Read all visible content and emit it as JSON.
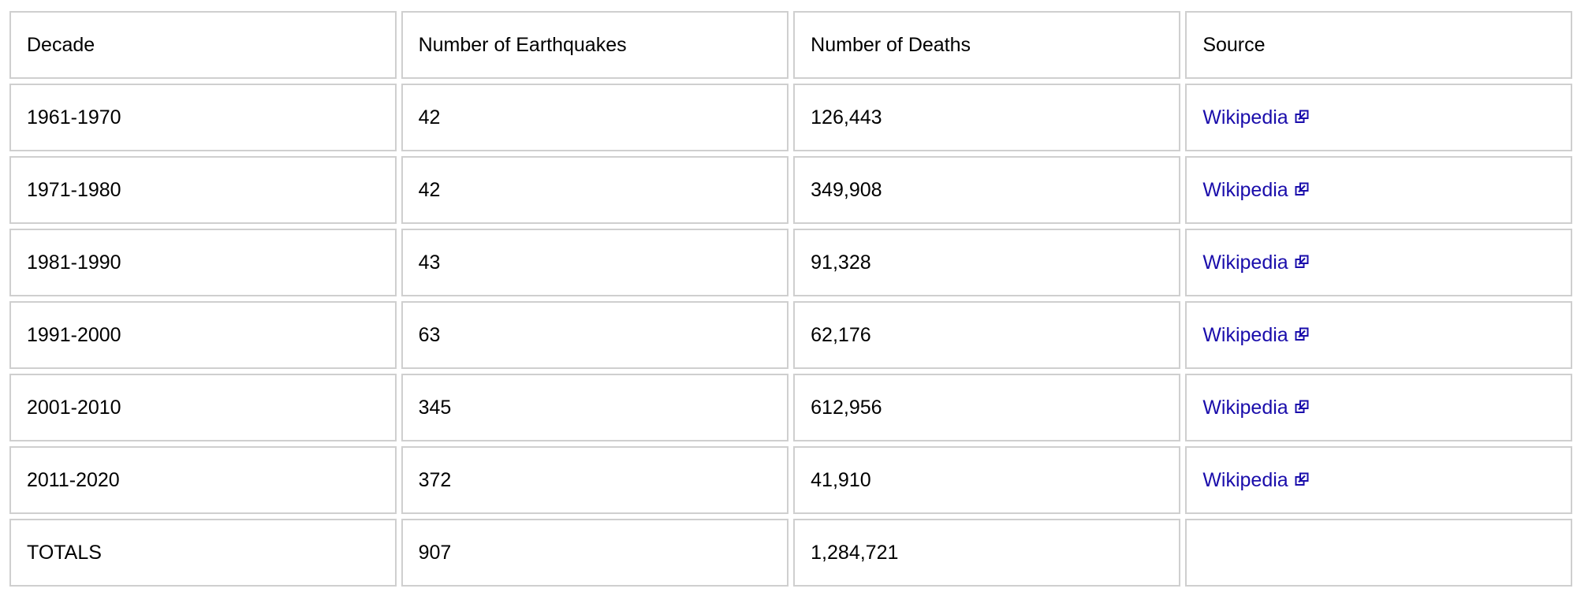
{
  "table": {
    "headers": [
      "Decade",
      "Number of Earthquakes",
      "Number of Deaths",
      "Source"
    ],
    "rows": [
      {
        "decade": "1961-1970",
        "earthquakes": "42",
        "deaths": "126,443",
        "source": "Wikipedia"
      },
      {
        "decade": "1971-1980",
        "earthquakes": "42",
        "deaths": "349,908",
        "source": "Wikipedia"
      },
      {
        "decade": "1981-1990",
        "earthquakes": "43",
        "deaths": "91,328",
        "source": "Wikipedia"
      },
      {
        "decade": "1991-2000",
        "earthquakes": "63",
        "deaths": "62,176",
        "source": "Wikipedia"
      },
      {
        "decade": "2001-2010",
        "earthquakes": "345",
        "deaths": "612,956",
        "source": "Wikipedia"
      },
      {
        "decade": "2011-2020",
        "earthquakes": "372",
        "deaths": "41,910",
        "source": "Wikipedia"
      }
    ],
    "totals": {
      "label": "TOTALS",
      "earthquakes": "907",
      "deaths": "1,284,721",
      "source": ""
    }
  },
  "icons": {
    "external_link": "external-link-icon"
  },
  "colors": {
    "link": "#1a0dab",
    "cell_border": "#cfcfcf",
    "text": "#000000",
    "background": "#ffffff"
  }
}
